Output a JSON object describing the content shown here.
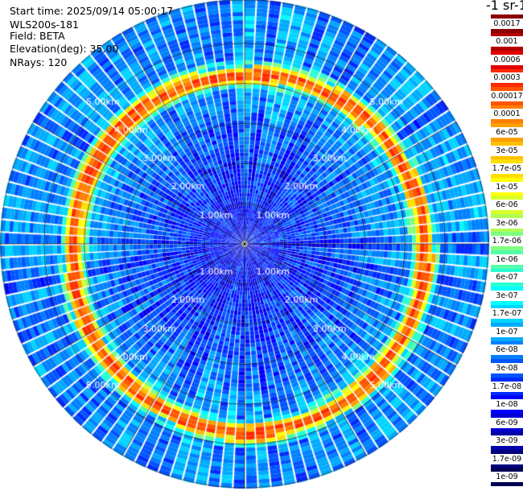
{
  "header": {
    "start_time": "Start time: 2025/09/14 05:00:17",
    "instrument": "WLS200s-181",
    "field": "Field: BETA",
    "elevation": "Elevation(deg): 35.00",
    "nrays": "NRays: 120"
  },
  "colorbar": {
    "title": "-1 sr-1",
    "levels": [
      {
        "label": "0.0017",
        "color": "#8b0000"
      },
      {
        "label": "0.001",
        "color": "#b40000"
      },
      {
        "label": "0.0006",
        "color": "#e00000"
      },
      {
        "label": "0.0003",
        "color": "#ff2a00"
      },
      {
        "label": "0.00017",
        "color": "#ff5500"
      },
      {
        "label": "0.0001",
        "color": "#ff7f00"
      },
      {
        "label": "6e-05",
        "color": "#ff9f00"
      },
      {
        "label": "3e-05",
        "color": "#ffbf00"
      },
      {
        "label": "1.7e-05",
        "color": "#ffdf00"
      },
      {
        "label": "1e-05",
        "color": "#ffff00"
      },
      {
        "label": "6e-06",
        "color": "#d8ff2a"
      },
      {
        "label": "3e-06",
        "color": "#b0ff55"
      },
      {
        "label": "1.7e-06",
        "color": "#80ff80"
      },
      {
        "label": "1e-06",
        "color": "#55ffaa"
      },
      {
        "label": "6e-07",
        "color": "#2affd4"
      },
      {
        "label": "3e-07",
        "color": "#00ffff"
      },
      {
        "label": "1.7e-07",
        "color": "#00d4ff"
      },
      {
        "label": "1e-07",
        "color": "#00aaff"
      },
      {
        "label": "6e-08",
        "color": "#0080ff"
      },
      {
        "label": "3e-08",
        "color": "#0055ff"
      },
      {
        "label": "1.7e-08",
        "color": "#002aff"
      },
      {
        "label": "1e-08",
        "color": "#0000ff"
      },
      {
        "label": "6e-09",
        "color": "#0000d4"
      },
      {
        "label": "3e-09",
        "color": "#0000aa"
      },
      {
        "label": "1.7e-09",
        "color": "#000080"
      },
      {
        "label": "1e-09",
        "color": "#000055"
      }
    ]
  },
  "chart_data": {
    "type": "heatmap",
    "projection": "polar",
    "field": "BETA",
    "elevation_deg": 35.0,
    "n_rays": 120,
    "range_rings_km": [
      1,
      2,
      3,
      4,
      5
    ],
    "ring_labels": [
      "1.00km",
      "2.00km",
      "3.00km",
      "4.00km",
      "5.00km"
    ],
    "max_range_km": 6.1,
    "gate_km": 0.1,
    "spoke_azimuths_deg": [
      0,
      30,
      60,
      90,
      120,
      150,
      180,
      210,
      240,
      270,
      300,
      330
    ],
    "label_azimuths_deg": [
      45,
      135,
      225,
      315
    ],
    "enhanced_layer_km": {
      "north": 4.15,
      "east": 4.45,
      "south": 4.7,
      "west": 4.2,
      "peak_value": "0.0003"
    },
    "near_field_value": "1e-08",
    "outer_field_value": "1e-07"
  }
}
